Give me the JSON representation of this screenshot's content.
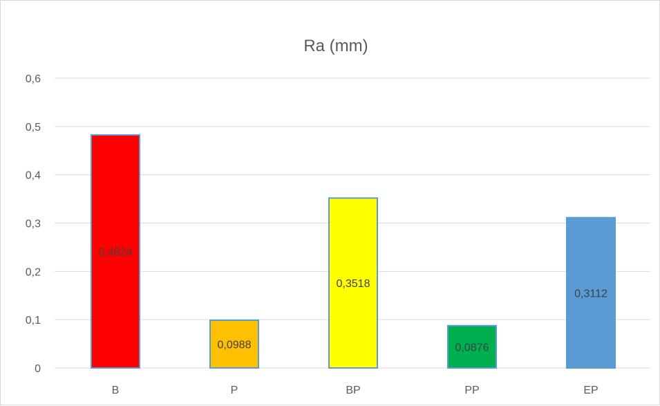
{
  "chart_data": {
    "type": "bar",
    "title": "Ra (mm)",
    "categories": [
      "B",
      "P",
      "BP",
      "PP",
      "EP"
    ],
    "values": [
      0.4824,
      0.0988,
      0.3518,
      0.0876,
      0.3112
    ],
    "data_labels": [
      "0,4824",
      "0,0988",
      "0,3518",
      "0,0876",
      "0,3112"
    ],
    "bar_colors": [
      "#ff0000",
      "#ffc000",
      "#ffff00",
      "#00b050",
      "#5b9bd5"
    ],
    "bar_border_color": "#5b9bd5",
    "y_ticks": [
      0,
      0.1,
      0.2,
      0.3,
      0.4,
      0.5,
      0.6
    ],
    "y_tick_labels": [
      "0",
      "0,1",
      "0,2",
      "0,3",
      "0,4",
      "0,5",
      "0,6"
    ],
    "ylim": [
      0,
      0.6
    ],
    "grid": true,
    "gridline_color": "#d9d9d9",
    "legend": "none"
  }
}
